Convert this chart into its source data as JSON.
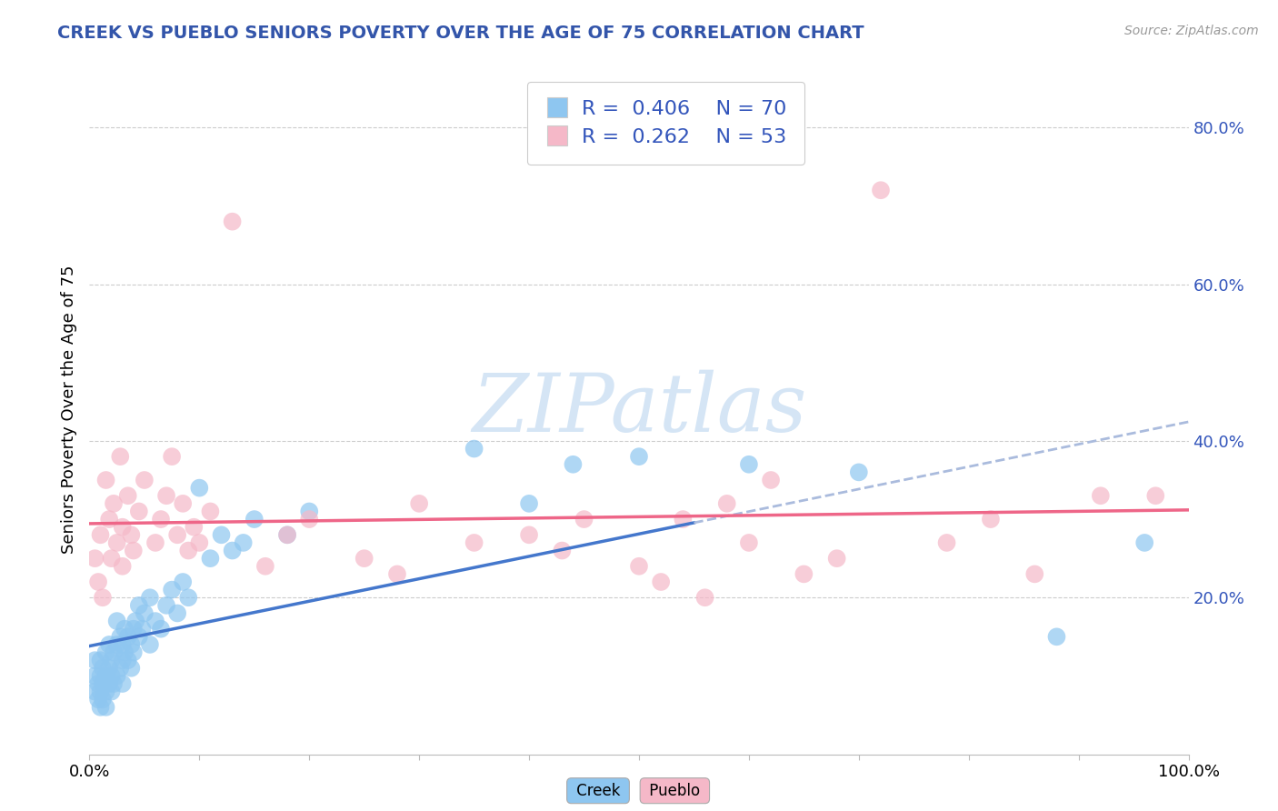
{
  "title": "CREEK VS PUEBLO SENIORS POVERTY OVER THE AGE OF 75 CORRELATION CHART",
  "source": "Source: ZipAtlas.com",
  "ylabel": "Seniors Poverty Over the Age of 75",
  "right_yticks": [
    "80.0%",
    "60.0%",
    "40.0%",
    "20.0%"
  ],
  "right_ytick_vals": [
    0.8,
    0.6,
    0.4,
    0.2
  ],
  "xlim": [
    0.0,
    1.0
  ],
  "ylim": [
    0.0,
    0.88
  ],
  "legend_r_creek": "0.406",
  "legend_n_creek": "70",
  "legend_r_pueblo": "0.262",
  "legend_n_pueblo": "53",
  "creek_color": "#8ec6f0",
  "pueblo_color": "#f5b8c8",
  "trendline_creek_color": "#4477cc",
  "trendline_pueblo_color": "#ee6688",
  "trendline_ext_color": "#aabbdd",
  "watermark_color": "#d5e5f5",
  "title_color": "#3355aa",
  "legend_text_color": "#3355bb",
  "creek_scatter": [
    [
      0.005,
      0.08
    ],
    [
      0.005,
      0.1
    ],
    [
      0.005,
      0.12
    ],
    [
      0.008,
      0.07
    ],
    [
      0.008,
      0.09
    ],
    [
      0.01,
      0.06
    ],
    [
      0.01,
      0.08
    ],
    [
      0.01,
      0.1
    ],
    [
      0.01,
      0.12
    ],
    [
      0.012,
      0.07
    ],
    [
      0.012,
      0.09
    ],
    [
      0.012,
      0.11
    ],
    [
      0.015,
      0.08
    ],
    [
      0.015,
      0.1
    ],
    [
      0.015,
      0.13
    ],
    [
      0.015,
      0.06
    ],
    [
      0.018,
      0.09
    ],
    [
      0.018,
      0.11
    ],
    [
      0.018,
      0.14
    ],
    [
      0.02,
      0.08
    ],
    [
      0.02,
      0.1
    ],
    [
      0.02,
      0.12
    ],
    [
      0.022,
      0.09
    ],
    [
      0.022,
      0.13
    ],
    [
      0.025,
      0.1
    ],
    [
      0.025,
      0.14
    ],
    [
      0.025,
      0.17
    ],
    [
      0.028,
      0.11
    ],
    [
      0.028,
      0.15
    ],
    [
      0.03,
      0.12
    ],
    [
      0.03,
      0.14
    ],
    [
      0.03,
      0.09
    ],
    [
      0.032,
      0.13
    ],
    [
      0.032,
      0.16
    ],
    [
      0.035,
      0.12
    ],
    [
      0.035,
      0.15
    ],
    [
      0.038,
      0.14
    ],
    [
      0.038,
      0.11
    ],
    [
      0.04,
      0.16
    ],
    [
      0.04,
      0.13
    ],
    [
      0.042,
      0.17
    ],
    [
      0.045,
      0.15
    ],
    [
      0.045,
      0.19
    ],
    [
      0.048,
      0.16
    ],
    [
      0.05,
      0.18
    ],
    [
      0.055,
      0.14
    ],
    [
      0.055,
      0.2
    ],
    [
      0.06,
      0.17
    ],
    [
      0.065,
      0.16
    ],
    [
      0.07,
      0.19
    ],
    [
      0.075,
      0.21
    ],
    [
      0.08,
      0.18
    ],
    [
      0.085,
      0.22
    ],
    [
      0.09,
      0.2
    ],
    [
      0.1,
      0.34
    ],
    [
      0.11,
      0.25
    ],
    [
      0.12,
      0.28
    ],
    [
      0.13,
      0.26
    ],
    [
      0.14,
      0.27
    ],
    [
      0.15,
      0.3
    ],
    [
      0.18,
      0.28
    ],
    [
      0.2,
      0.31
    ],
    [
      0.35,
      0.39
    ],
    [
      0.4,
      0.32
    ],
    [
      0.44,
      0.37
    ],
    [
      0.5,
      0.38
    ],
    [
      0.6,
      0.37
    ],
    [
      0.7,
      0.36
    ],
    [
      0.88,
      0.15
    ],
    [
      0.96,
      0.27
    ]
  ],
  "pueblo_scatter": [
    [
      0.005,
      0.25
    ],
    [
      0.008,
      0.22
    ],
    [
      0.01,
      0.28
    ],
    [
      0.012,
      0.2
    ],
    [
      0.015,
      0.35
    ],
    [
      0.018,
      0.3
    ],
    [
      0.02,
      0.25
    ],
    [
      0.022,
      0.32
    ],
    [
      0.025,
      0.27
    ],
    [
      0.028,
      0.38
    ],
    [
      0.03,
      0.24
    ],
    [
      0.03,
      0.29
    ],
    [
      0.035,
      0.33
    ],
    [
      0.038,
      0.28
    ],
    [
      0.04,
      0.26
    ],
    [
      0.045,
      0.31
    ],
    [
      0.05,
      0.35
    ],
    [
      0.06,
      0.27
    ],
    [
      0.065,
      0.3
    ],
    [
      0.07,
      0.33
    ],
    [
      0.075,
      0.38
    ],
    [
      0.08,
      0.28
    ],
    [
      0.085,
      0.32
    ],
    [
      0.09,
      0.26
    ],
    [
      0.095,
      0.29
    ],
    [
      0.1,
      0.27
    ],
    [
      0.11,
      0.31
    ],
    [
      0.13,
      0.68
    ],
    [
      0.16,
      0.24
    ],
    [
      0.18,
      0.28
    ],
    [
      0.2,
      0.3
    ],
    [
      0.25,
      0.25
    ],
    [
      0.28,
      0.23
    ],
    [
      0.3,
      0.32
    ],
    [
      0.35,
      0.27
    ],
    [
      0.4,
      0.28
    ],
    [
      0.43,
      0.26
    ],
    [
      0.45,
      0.3
    ],
    [
      0.5,
      0.24
    ],
    [
      0.52,
      0.22
    ],
    [
      0.54,
      0.3
    ],
    [
      0.56,
      0.2
    ],
    [
      0.58,
      0.32
    ],
    [
      0.6,
      0.27
    ],
    [
      0.62,
      0.35
    ],
    [
      0.65,
      0.23
    ],
    [
      0.68,
      0.25
    ],
    [
      0.72,
      0.72
    ],
    [
      0.78,
      0.27
    ],
    [
      0.82,
      0.3
    ],
    [
      0.86,
      0.23
    ],
    [
      0.92,
      0.33
    ],
    [
      0.97,
      0.33
    ]
  ]
}
